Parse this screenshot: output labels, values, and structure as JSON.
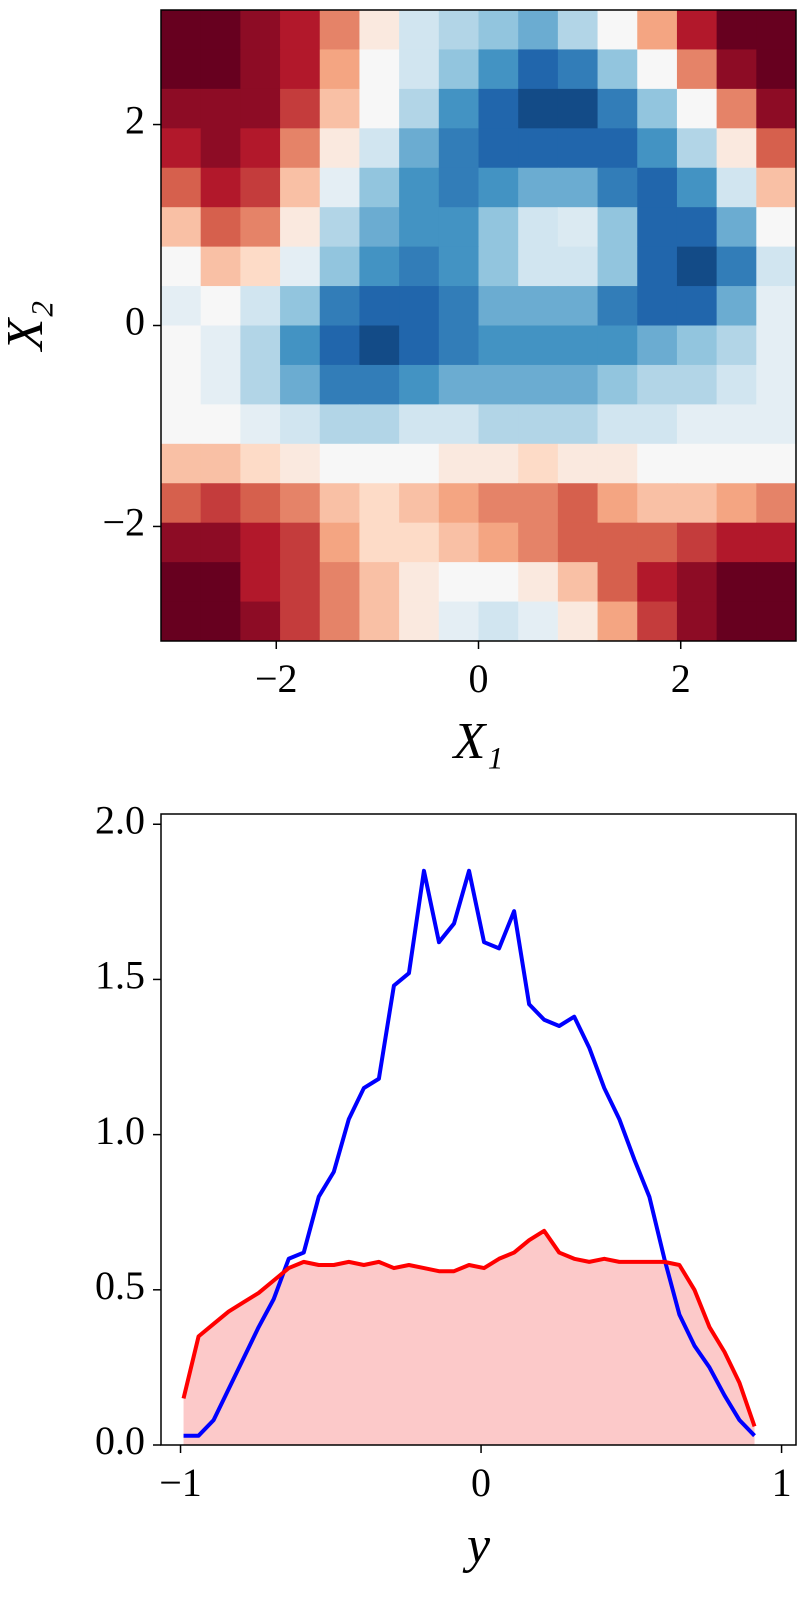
{
  "chart_data": [
    {
      "type": "heatmap",
      "colormap": "RdBu",
      "clim": [
        -1,
        1
      ],
      "xlabel": "X₁",
      "ylabel": "X₂",
      "xlim": [
        -3.14,
        3.14
      ],
      "ylim": [
        -3.14,
        3.14
      ],
      "xticks": [
        {
          "value": -2,
          "label": "−2"
        },
        0,
        2
      ],
      "yticks": [
        {
          "value": -2,
          "label": "−2"
        },
        0,
        2
      ],
      "z": [
        [
          -1,
          -1,
          -0.9,
          -0.8,
          -0.5,
          -0.1,
          0.2,
          0.3,
          0.4,
          0.5,
          0.3,
          0,
          -0.4,
          -0.8,
          -1,
          -1
        ],
        [
          -1,
          -1,
          -0.9,
          -0.8,
          -0.4,
          0,
          0.2,
          0.4,
          0.6,
          0.8,
          0.7,
          0.4,
          0,
          -0.5,
          -0.9,
          -1
        ],
        [
          -0.9,
          -0.9,
          -0.9,
          -0.7,
          -0.3,
          0,
          0.3,
          0.6,
          0.8,
          0.9,
          0.9,
          0.7,
          0.4,
          0,
          -0.5,
          -0.9
        ],
        [
          -0.8,
          -0.9,
          -0.8,
          -0.5,
          -0.1,
          0.2,
          0.5,
          0.7,
          0.8,
          0.8,
          0.8,
          0.8,
          0.6,
          0.3,
          -0.1,
          -0.6
        ],
        [
          -0.6,
          -0.8,
          -0.7,
          -0.3,
          0.1,
          0.4,
          0.6,
          0.7,
          0.6,
          0.5,
          0.5,
          0.7,
          0.8,
          0.6,
          0.2,
          -0.3
        ],
        [
          -0.3,
          -0.6,
          -0.5,
          -0.1,
          0.3,
          0.5,
          0.6,
          0.6,
          0.4,
          0.2,
          0.15,
          0.4,
          0.8,
          0.8,
          0.5,
          0
        ],
        [
          0,
          -0.3,
          -0.2,
          0.1,
          0.4,
          0.6,
          0.7,
          0.6,
          0.4,
          0.2,
          0.2,
          0.4,
          0.8,
          0.9,
          0.7,
          0.2
        ],
        [
          0.1,
          0,
          0.2,
          0.4,
          0.7,
          0.8,
          0.8,
          0.7,
          0.5,
          0.5,
          0.5,
          0.7,
          0.8,
          0.8,
          0.5,
          0.1
        ],
        [
          0,
          0.1,
          0.3,
          0.6,
          0.8,
          0.9,
          0.8,
          0.7,
          0.6,
          0.6,
          0.6,
          0.6,
          0.5,
          0.4,
          0.3,
          0.1
        ],
        [
          0,
          0.1,
          0.3,
          0.5,
          0.7,
          0.7,
          0.6,
          0.5,
          0.5,
          0.5,
          0.5,
          0.4,
          0.3,
          0.3,
          0.2,
          0.1
        ],
        [
          0,
          0,
          0.1,
          0.2,
          0.3,
          0.3,
          0.2,
          0.2,
          0.3,
          0.3,
          0.3,
          0.2,
          0.2,
          0.1,
          0.1,
          0.1
        ],
        [
          -0.3,
          -0.3,
          -0.2,
          -0.1,
          0,
          0,
          0,
          -0.1,
          -0.1,
          -0.2,
          -0.1,
          -0.1,
          0,
          0,
          0,
          0
        ],
        [
          -0.6,
          -0.7,
          -0.6,
          -0.5,
          -0.3,
          -0.2,
          -0.3,
          -0.4,
          -0.5,
          -0.5,
          -0.6,
          -0.4,
          -0.3,
          -0.3,
          -0.4,
          -0.5
        ],
        [
          -0.9,
          -0.9,
          -0.8,
          -0.7,
          -0.4,
          -0.2,
          -0.2,
          -0.3,
          -0.4,
          -0.5,
          -0.6,
          -0.6,
          -0.6,
          -0.7,
          -0.8,
          -0.8
        ],
        [
          -1,
          -1,
          -0.8,
          -0.7,
          -0.5,
          -0.3,
          -0.1,
          0,
          0,
          -0.1,
          -0.3,
          -0.6,
          -0.8,
          -0.9,
          -1,
          -1
        ],
        [
          -1,
          -1,
          -0.9,
          -0.7,
          -0.5,
          -0.3,
          -0.1,
          0.1,
          0.2,
          0.1,
          -0.1,
          -0.4,
          -0.7,
          -0.9,
          -1,
          -1
        ]
      ]
    },
    {
      "type": "line",
      "xlabel": "y",
      "xlim": [
        -1.065,
        1.048
      ],
      "ylim": [
        0,
        2.033
      ],
      "xticks": [
        {
          "value": -1,
          "label": "−1"
        },
        0,
        1
      ],
      "yticks": [
        {
          "value": 0,
          "label": "0.0"
        },
        0.5,
        {
          "value": 1,
          "label": "1.0"
        },
        1.5,
        {
          "value": 2,
          "label": "2.0"
        }
      ],
      "x": [
        -0.99,
        -0.94,
        -0.89,
        -0.84,
        -0.79,
        -0.74,
        -0.69,
        -0.64,
        -0.59,
        -0.54,
        -0.49,
        -0.44,
        -0.39,
        -0.34,
        -0.29,
        -0.24,
        -0.19,
        -0.14,
        -0.09,
        -0.04,
        0.01,
        0.06,
        0.11,
        0.16,
        0.21,
        0.26,
        0.31,
        0.36,
        0.41,
        0.46,
        0.51,
        0.56,
        0.61,
        0.66,
        0.71,
        0.76,
        0.81,
        0.86,
        0.91
      ],
      "series": [
        {
          "color": "#ff0000",
          "fill": "#fcc9c9",
          "values": [
            0.15,
            0.35,
            0.39,
            0.43,
            0.46,
            0.49,
            0.53,
            0.57,
            0.59,
            0.58,
            0.58,
            0.59,
            0.58,
            0.59,
            0.57,
            0.58,
            0.57,
            0.56,
            0.56,
            0.58,
            0.57,
            0.6,
            0.62,
            0.66,
            0.69,
            0.62,
            0.6,
            0.59,
            0.6,
            0.59,
            0.59,
            0.59,
            0.59,
            0.58,
            0.5,
            0.38,
            0.3,
            0.2,
            0.06
          ]
        },
        {
          "color": "#0000ff",
          "values": [
            0.03,
            0.03,
            0.08,
            0.18,
            0.28,
            0.38,
            0.47,
            0.6,
            0.62,
            0.8,
            0.88,
            1.05,
            1.15,
            1.18,
            1.48,
            1.52,
            1.85,
            1.62,
            1.68,
            1.85,
            1.62,
            1.6,
            1.72,
            1.42,
            1.37,
            1.35,
            1.38,
            1.28,
            1.15,
            1.05,
            0.92,
            0.8,
            0.6,
            0.42,
            0.32,
            0.25,
            0.16,
            0.08,
            0.03
          ]
        }
      ]
    }
  ]
}
